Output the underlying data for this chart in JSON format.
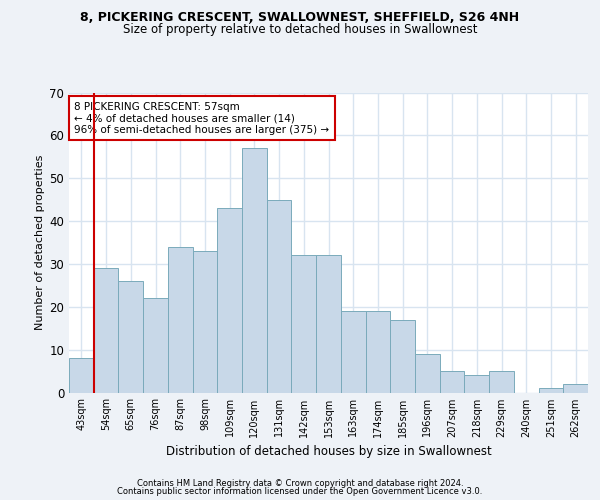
{
  "title1": "8, PICKERING CRESCENT, SWALLOWNEST, SHEFFIELD, S26 4NH",
  "title2": "Size of property relative to detached houses in Swallownest",
  "xlabel": "Distribution of detached houses by size in Swallownest",
  "ylabel": "Number of detached properties",
  "categories": [
    "43sqm",
    "54sqm",
    "65sqm",
    "76sqm",
    "87sqm",
    "98sqm",
    "109sqm",
    "120sqm",
    "131sqm",
    "142sqm",
    "153sqm",
    "163sqm",
    "174sqm",
    "185sqm",
    "196sqm",
    "207sqm",
    "218sqm",
    "229sqm",
    "240sqm",
    "251sqm",
    "262sqm"
  ],
  "values": [
    8,
    29,
    26,
    22,
    34,
    33,
    43,
    57,
    45,
    32,
    32,
    19,
    19,
    17,
    9,
    5,
    4,
    5,
    0,
    1,
    2
  ],
  "bar_color": "#c8d8e8",
  "bar_edge_color": "#7aaabb",
  "property_line_bin": 1,
  "annotation_text": "8 PICKERING CRESCENT: 57sqm\n← 4% of detached houses are smaller (14)\n96% of semi-detached houses are larger (375) →",
  "ylim": [
    0,
    70
  ],
  "yticks": [
    0,
    10,
    20,
    30,
    40,
    50,
    60,
    70
  ],
  "footer1": "Contains HM Land Registry data © Crown copyright and database right 2024.",
  "footer2": "Contains public sector information licensed under the Open Government Licence v3.0.",
  "bg_color": "#eef2f7",
  "plot_bg_color": "#ffffff",
  "grid_color": "#d8e4f0",
  "line_color": "#cc0000",
  "annotation_box_color": "#ffffff",
  "annotation_border_color": "#cc0000"
}
